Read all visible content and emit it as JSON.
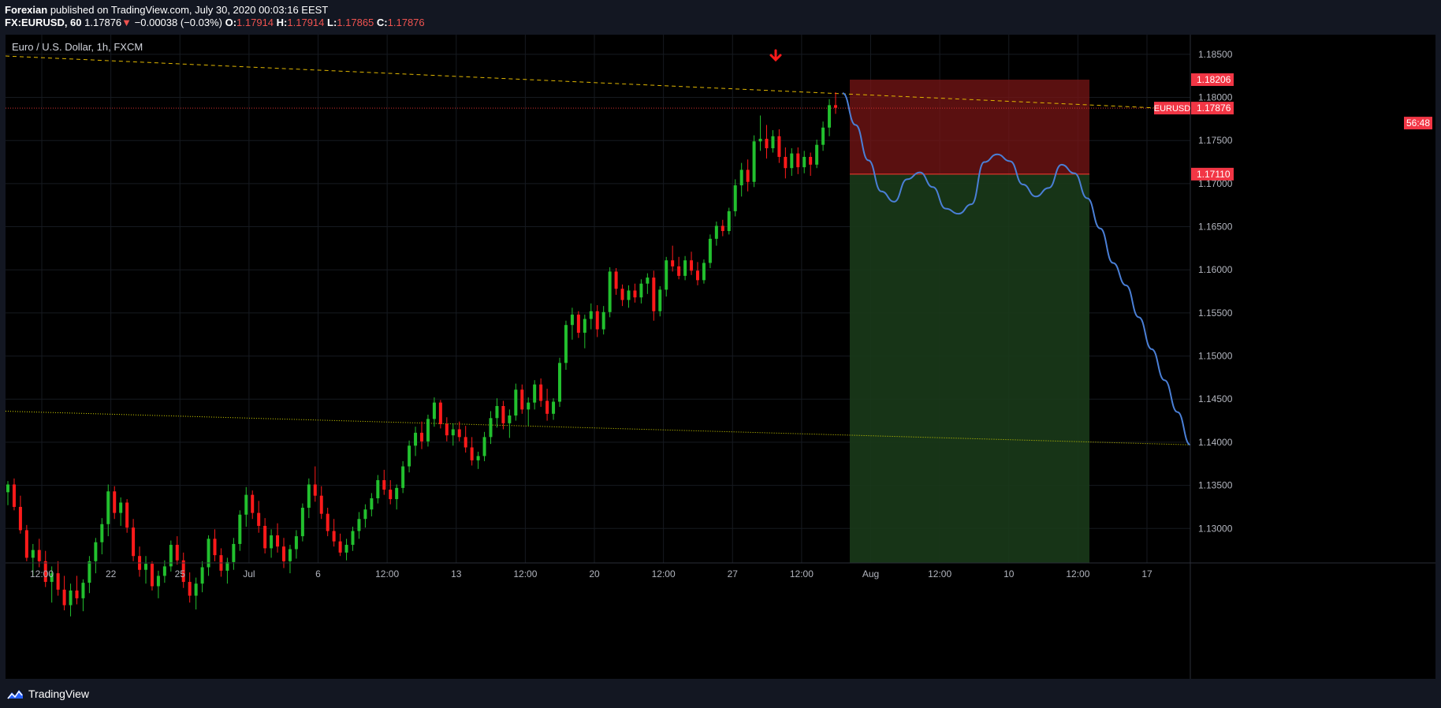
{
  "header": {
    "publisher": "Forexian",
    "published_text": "published on TradingView.com, July 30, 2020 00:03:16 EEST",
    "symbol": "FX:EURUSD, 60",
    "last": "1.17876",
    "change_arrow": "▼",
    "change": "−0.00038 (−0.03%)",
    "o_label": "O:",
    "o_value": "1.17914",
    "h_label": "H:",
    "h_value": "1.17914",
    "l_label": "L:",
    "l_value": "1.17865",
    "c_label": "C:",
    "c_value": "1.17876"
  },
  "chart": {
    "title": "Euro / U.S. Dollar, 1h, FXCM"
  },
  "footer": {
    "brand": "TradingView",
    "logo_icon": "tradingview-logo-icon"
  },
  "colors": {
    "background": "#000000",
    "panel": "#131722",
    "up_candle": "#26a69a",
    "up_candle_chart": "#22c02e",
    "down_candle": "#ff1a1a",
    "forecast_line": "#4a7fd6",
    "trendline_upper": "#e0b600",
    "trendline_lower": "#d6d600",
    "stop_zone": "rgba(120,22,22,0.75)",
    "target_zone": "rgba(26,58,26,0.9)",
    "price_label_bg": "#f23645",
    "arrow": "#ff1a1a"
  },
  "chart_data": {
    "type": "candlestick",
    "title": "Euro / U.S. Dollar, 1h, FXCM",
    "xlabel": "",
    "ylabel": "",
    "ylim": [
      1.126,
      1.187
    ],
    "grid": true,
    "y_ticks": [
      "1.18500",
      "1.18000",
      "1.17500",
      "1.17000",
      "1.16500",
      "1.16000",
      "1.15500",
      "1.15000",
      "1.14500",
      "1.14000",
      "1.13500",
      "1.13000"
    ],
    "x_ticks": [
      "12:00",
      "22",
      "25",
      "Jul",
      "6",
      "12:00",
      "13",
      "12:00",
      "20",
      "12:00",
      "27",
      "12:00",
      "Aug",
      "12:00",
      "10",
      "12:00",
      "17"
    ],
    "price_labels": [
      {
        "text": "1.18206",
        "value": 1.18206
      },
      {
        "text": "1.17876",
        "value": 1.17876,
        "prefix": "EURUSD"
      },
      {
        "text": "56:48",
        "value": 1.17876,
        "kind": "countdown"
      },
      {
        "text": "1.17110",
        "value": 1.1711
      }
    ],
    "trade_setup": {
      "direction": "short",
      "entry": 1.1711,
      "stop": 1.18206
    },
    "trendlines": [
      {
        "name": "",
        "style": "dashed",
        "from": [
          0,
          1.1848
        ],
        "to": [
          1,
          1.1786
        ]
      },
      {
        "name": "",
        "style": "dotted",
        "from": [
          0,
          1.1436
        ],
        "to": [
          1,
          1.1397
        ]
      }
    ],
    "forecast_path": [
      [
        0,
        1.1805
      ],
      [
        1,
        1.1768
      ],
      [
        2,
        1.1727
      ],
      [
        3,
        1.1691
      ],
      [
        4,
        1.1679
      ],
      [
        5,
        1.1705
      ],
      [
        6,
        1.1713
      ],
      [
        7,
        1.1696
      ],
      [
        8,
        1.1671
      ],
      [
        9,
        1.1665
      ],
      [
        10,
        1.1676
      ],
      [
        11,
        1.1725
      ],
      [
        12,
        1.1734
      ],
      [
        13,
        1.1726
      ],
      [
        14,
        1.1699
      ],
      [
        15,
        1.1685
      ],
      [
        16,
        1.1695
      ],
      [
        17,
        1.1722
      ],
      [
        18,
        1.1712
      ],
      [
        19,
        1.1683
      ],
      [
        20,
        1.1648
      ],
      [
        21,
        1.1608
      ],
      [
        22,
        1.1582
      ],
      [
        23,
        1.1545
      ],
      [
        24,
        1.1508
      ],
      [
        25,
        1.1472
      ],
      [
        26,
        1.1435
      ],
      [
        27,
        1.1397
      ]
    ],
    "candles": [
      {
        "o": 1.1342,
        "h": 1.1355,
        "l": 1.1327,
        "c": 1.1351
      },
      {
        "o": 1.1351,
        "h": 1.1358,
        "l": 1.1321,
        "c": 1.1325
      },
      {
        "o": 1.1325,
        "h": 1.1338,
        "l": 1.1294,
        "c": 1.1298
      },
      {
        "o": 1.1298,
        "h": 1.1304,
        "l": 1.1262,
        "c": 1.1266
      },
      {
        "o": 1.1266,
        "h": 1.1282,
        "l": 1.1245,
        "c": 1.1275
      },
      {
        "o": 1.1275,
        "h": 1.1288,
        "l": 1.1255,
        "c": 1.1262
      },
      {
        "o": 1.1262,
        "h": 1.1274,
        "l": 1.1232,
        "c": 1.1238
      },
      {
        "o": 1.1238,
        "h": 1.1256,
        "l": 1.1214,
        "c": 1.1248
      },
      {
        "o": 1.1248,
        "h": 1.1262,
        "l": 1.1222,
        "c": 1.1229
      },
      {
        "o": 1.1229,
        "h": 1.1245,
        "l": 1.1205,
        "c": 1.1211
      },
      {
        "o": 1.1211,
        "h": 1.1236,
        "l": 1.1198,
        "c": 1.1228
      },
      {
        "o": 1.1228,
        "h": 1.1245,
        "l": 1.1212,
        "c": 1.1219
      },
      {
        "o": 1.1219,
        "h": 1.1241,
        "l": 1.1204,
        "c": 1.1237
      },
      {
        "o": 1.1237,
        "h": 1.1268,
        "l": 1.1225,
        "c": 1.1262
      },
      {
        "o": 1.1262,
        "h": 1.1289,
        "l": 1.1248,
        "c": 1.1284
      },
      {
        "o": 1.1284,
        "h": 1.1312,
        "l": 1.127,
        "c": 1.1305
      },
      {
        "o": 1.1305,
        "h": 1.1351,
        "l": 1.1291,
        "c": 1.1343
      },
      {
        "o": 1.1343,
        "h": 1.1349,
        "l": 1.1311,
        "c": 1.1318
      },
      {
        "o": 1.1318,
        "h": 1.1336,
        "l": 1.1303,
        "c": 1.133
      },
      {
        "o": 1.133,
        "h": 1.1334,
        "l": 1.1295,
        "c": 1.1301
      },
      {
        "o": 1.1301,
        "h": 1.1311,
        "l": 1.1262,
        "c": 1.1268
      },
      {
        "o": 1.1268,
        "h": 1.1279,
        "l": 1.1244,
        "c": 1.1252
      },
      {
        "o": 1.1252,
        "h": 1.1268,
        "l": 1.1236,
        "c": 1.1259
      },
      {
        "o": 1.1259,
        "h": 1.1262,
        "l": 1.1228,
        "c": 1.1233
      },
      {
        "o": 1.1233,
        "h": 1.1251,
        "l": 1.1219,
        "c": 1.1245
      },
      {
        "o": 1.1245,
        "h": 1.1263,
        "l": 1.1237,
        "c": 1.1256
      },
      {
        "o": 1.1256,
        "h": 1.1286,
        "l": 1.125,
        "c": 1.1281
      },
      {
        "o": 1.1281,
        "h": 1.1291,
        "l": 1.1258,
        "c": 1.1263
      },
      {
        "o": 1.1263,
        "h": 1.1272,
        "l": 1.1231,
        "c": 1.1238
      },
      {
        "o": 1.1238,
        "h": 1.1249,
        "l": 1.1214,
        "c": 1.1222
      },
      {
        "o": 1.1222,
        "h": 1.1243,
        "l": 1.1206,
        "c": 1.1236
      },
      {
        "o": 1.1236,
        "h": 1.1262,
        "l": 1.1226,
        "c": 1.1255
      },
      {
        "o": 1.1255,
        "h": 1.1292,
        "l": 1.1245,
        "c": 1.1288
      },
      {
        "o": 1.1288,
        "h": 1.1299,
        "l": 1.1262,
        "c": 1.1269
      },
      {
        "o": 1.1269,
        "h": 1.1277,
        "l": 1.1244,
        "c": 1.1251
      },
      {
        "o": 1.1251,
        "h": 1.1266,
        "l": 1.1236,
        "c": 1.1261
      },
      {
        "o": 1.1261,
        "h": 1.1289,
        "l": 1.1252,
        "c": 1.1282
      },
      {
        "o": 1.1282,
        "h": 1.1321,
        "l": 1.1274,
        "c": 1.1316
      },
      {
        "o": 1.1316,
        "h": 1.1348,
        "l": 1.1302,
        "c": 1.1339
      },
      {
        "o": 1.1339,
        "h": 1.1344,
        "l": 1.1311,
        "c": 1.1318
      },
      {
        "o": 1.1318,
        "h": 1.1332,
        "l": 1.1295,
        "c": 1.1303
      },
      {
        "o": 1.1303,
        "h": 1.1312,
        "l": 1.1271,
        "c": 1.1277
      },
      {
        "o": 1.1277,
        "h": 1.1299,
        "l": 1.1266,
        "c": 1.1292
      },
      {
        "o": 1.1292,
        "h": 1.1306,
        "l": 1.1272,
        "c": 1.1279
      },
      {
        "o": 1.1279,
        "h": 1.1289,
        "l": 1.1254,
        "c": 1.1262
      },
      {
        "o": 1.1262,
        "h": 1.1281,
        "l": 1.1248,
        "c": 1.1276
      },
      {
        "o": 1.1276,
        "h": 1.1298,
        "l": 1.1265,
        "c": 1.1291
      },
      {
        "o": 1.1291,
        "h": 1.1329,
        "l": 1.1285,
        "c": 1.1324
      },
      {
        "o": 1.1324,
        "h": 1.1358,
        "l": 1.1312,
        "c": 1.1351
      },
      {
        "o": 1.1351,
        "h": 1.1372,
        "l": 1.1331,
        "c": 1.1338
      },
      {
        "o": 1.1338,
        "h": 1.1349,
        "l": 1.1311,
        "c": 1.1317
      },
      {
        "o": 1.1317,
        "h": 1.1324,
        "l": 1.1291,
        "c": 1.1297
      },
      {
        "o": 1.1297,
        "h": 1.1311,
        "l": 1.1279,
        "c": 1.1285
      },
      {
        "o": 1.1285,
        "h": 1.1294,
        "l": 1.1268,
        "c": 1.1272
      },
      {
        "o": 1.1272,
        "h": 1.1288,
        "l": 1.1263,
        "c": 1.1281
      },
      {
        "o": 1.1281,
        "h": 1.1302,
        "l": 1.1274,
        "c": 1.1297
      },
      {
        "o": 1.1297,
        "h": 1.1319,
        "l": 1.1288,
        "c": 1.1311
      },
      {
        "o": 1.1311,
        "h": 1.1328,
        "l": 1.1301,
        "c": 1.1322
      },
      {
        "o": 1.1322,
        "h": 1.1341,
        "l": 1.1314,
        "c": 1.1335
      },
      {
        "o": 1.1335,
        "h": 1.1362,
        "l": 1.1329,
        "c": 1.1356
      },
      {
        "o": 1.1356,
        "h": 1.1368,
        "l": 1.1339,
        "c": 1.1345
      },
      {
        "o": 1.1345,
        "h": 1.1356,
        "l": 1.1328,
        "c": 1.1334
      },
      {
        "o": 1.1334,
        "h": 1.1351,
        "l": 1.1322,
        "c": 1.1347
      },
      {
        "o": 1.1347,
        "h": 1.1378,
        "l": 1.1341,
        "c": 1.1372
      },
      {
        "o": 1.1372,
        "h": 1.1402,
        "l": 1.1365,
        "c": 1.1396
      },
      {
        "o": 1.1396,
        "h": 1.1418,
        "l": 1.1384,
        "c": 1.1411
      },
      {
        "o": 1.1411,
        "h": 1.1424,
        "l": 1.1392,
        "c": 1.1401
      },
      {
        "o": 1.1401,
        "h": 1.1432,
        "l": 1.1395,
        "c": 1.1427
      },
      {
        "o": 1.1427,
        "h": 1.1452,
        "l": 1.1418,
        "c": 1.1446
      },
      {
        "o": 1.1446,
        "h": 1.1449,
        "l": 1.1416,
        "c": 1.1421
      },
      {
        "o": 1.1421,
        "h": 1.1429,
        "l": 1.1401,
        "c": 1.1408
      },
      {
        "o": 1.1408,
        "h": 1.1422,
        "l": 1.1396,
        "c": 1.1415
      },
      {
        "o": 1.1415,
        "h": 1.1424,
        "l": 1.1401,
        "c": 1.1406
      },
      {
        "o": 1.1406,
        "h": 1.1419,
        "l": 1.1388,
        "c": 1.1394
      },
      {
        "o": 1.1394,
        "h": 1.1406,
        "l": 1.1373,
        "c": 1.1379
      },
      {
        "o": 1.1379,
        "h": 1.1389,
        "l": 1.1369,
        "c": 1.1384
      },
      {
        "o": 1.1384,
        "h": 1.1412,
        "l": 1.1378,
        "c": 1.1406
      },
      {
        "o": 1.1406,
        "h": 1.1436,
        "l": 1.1398,
        "c": 1.1428
      },
      {
        "o": 1.1428,
        "h": 1.1451,
        "l": 1.1417,
        "c": 1.1442
      },
      {
        "o": 1.1442,
        "h": 1.1448,
        "l": 1.1415,
        "c": 1.1422
      },
      {
        "o": 1.1422,
        "h": 1.1438,
        "l": 1.1405,
        "c": 1.1431
      },
      {
        "o": 1.1431,
        "h": 1.1468,
        "l": 1.1425,
        "c": 1.1461
      },
      {
        "o": 1.1461,
        "h": 1.1467,
        "l": 1.1433,
        "c": 1.1438
      },
      {
        "o": 1.1438,
        "h": 1.1452,
        "l": 1.1419,
        "c": 1.1446
      },
      {
        "o": 1.1446,
        "h": 1.1472,
        "l": 1.1438,
        "c": 1.1467
      },
      {
        "o": 1.1467,
        "h": 1.1474,
        "l": 1.1441,
        "c": 1.1448
      },
      {
        "o": 1.1448,
        "h": 1.1462,
        "l": 1.1425,
        "c": 1.1433
      },
      {
        "o": 1.1433,
        "h": 1.1451,
        "l": 1.1426,
        "c": 1.1447
      },
      {
        "o": 1.1447,
        "h": 1.1498,
        "l": 1.1441,
        "c": 1.1492
      },
      {
        "o": 1.1492,
        "h": 1.1541,
        "l": 1.1484,
        "c": 1.1536
      },
      {
        "o": 1.1536,
        "h": 1.1556,
        "l": 1.1519,
        "c": 1.1548
      },
      {
        "o": 1.1548,
        "h": 1.1552,
        "l": 1.1521,
        "c": 1.1527
      },
      {
        "o": 1.1527,
        "h": 1.1548,
        "l": 1.1509,
        "c": 1.1543
      },
      {
        "o": 1.1543,
        "h": 1.1561,
        "l": 1.1531,
        "c": 1.1552
      },
      {
        "o": 1.1552,
        "h": 1.1559,
        "l": 1.1522,
        "c": 1.1531
      },
      {
        "o": 1.1531,
        "h": 1.1558,
        "l": 1.1525,
        "c": 1.1551
      },
      {
        "o": 1.1551,
        "h": 1.1603,
        "l": 1.1545,
        "c": 1.1598
      },
      {
        "o": 1.1598,
        "h": 1.1602,
        "l": 1.1571,
        "c": 1.1578
      },
      {
        "o": 1.1578,
        "h": 1.1583,
        "l": 1.1558,
        "c": 1.1565
      },
      {
        "o": 1.1565,
        "h": 1.1582,
        "l": 1.1556,
        "c": 1.1576
      },
      {
        "o": 1.1576,
        "h": 1.1584,
        "l": 1.1562,
        "c": 1.1568
      },
      {
        "o": 1.1568,
        "h": 1.1589,
        "l": 1.1561,
        "c": 1.1584
      },
      {
        "o": 1.1584,
        "h": 1.1596,
        "l": 1.1572,
        "c": 1.1591
      },
      {
        "o": 1.1591,
        "h": 1.1599,
        "l": 1.1541,
        "c": 1.1552
      },
      {
        "o": 1.1552,
        "h": 1.1581,
        "l": 1.1546,
        "c": 1.1577
      },
      {
        "o": 1.1577,
        "h": 1.1615,
        "l": 1.1569,
        "c": 1.1611
      },
      {
        "o": 1.1611,
        "h": 1.1628,
        "l": 1.1598,
        "c": 1.1604
      },
      {
        "o": 1.1604,
        "h": 1.1615,
        "l": 1.1589,
        "c": 1.1593
      },
      {
        "o": 1.1593,
        "h": 1.1616,
        "l": 1.1588,
        "c": 1.1611
      },
      {
        "o": 1.1611,
        "h": 1.1621,
        "l": 1.1594,
        "c": 1.1599
      },
      {
        "o": 1.1599,
        "h": 1.1609,
        "l": 1.1582,
        "c": 1.1588
      },
      {
        "o": 1.1588,
        "h": 1.1612,
        "l": 1.1584,
        "c": 1.1608
      },
      {
        "o": 1.1608,
        "h": 1.1641,
        "l": 1.1602,
        "c": 1.1636
      },
      {
        "o": 1.1636,
        "h": 1.1656,
        "l": 1.1628,
        "c": 1.1651
      },
      {
        "o": 1.1651,
        "h": 1.1658,
        "l": 1.1639,
        "c": 1.1645
      },
      {
        "o": 1.1645,
        "h": 1.1672,
        "l": 1.1641,
        "c": 1.1668
      },
      {
        "o": 1.1668,
        "h": 1.1705,
        "l": 1.1662,
        "c": 1.1698
      },
      {
        "o": 1.1698,
        "h": 1.1724,
        "l": 1.1685,
        "c": 1.1716
      },
      {
        "o": 1.1716,
        "h": 1.1728,
        "l": 1.1691,
        "c": 1.1702
      },
      {
        "o": 1.1702,
        "h": 1.1756,
        "l": 1.1696,
        "c": 1.1749
      },
      {
        "o": 1.1749,
        "h": 1.1779,
        "l": 1.1738,
        "c": 1.1752
      },
      {
        "o": 1.1752,
        "h": 1.1768,
        "l": 1.1729,
        "c": 1.1741
      },
      {
        "o": 1.1741,
        "h": 1.1762,
        "l": 1.1736,
        "c": 1.1755
      },
      {
        "o": 1.1755,
        "h": 1.1763,
        "l": 1.1724,
        "c": 1.1731
      },
      {
        "o": 1.1731,
        "h": 1.1742,
        "l": 1.1706,
        "c": 1.1718
      },
      {
        "o": 1.1718,
        "h": 1.1741,
        "l": 1.1709,
        "c": 1.1735
      },
      {
        "o": 1.1735,
        "h": 1.1742,
        "l": 1.1711,
        "c": 1.1719
      },
      {
        "o": 1.1719,
        "h": 1.1738,
        "l": 1.1712,
        "c": 1.1731
      },
      {
        "o": 1.1731,
        "h": 1.1736,
        "l": 1.1709,
        "c": 1.1722
      },
      {
        "o": 1.1722,
        "h": 1.1751,
        "l": 1.1718,
        "c": 1.1745
      },
      {
        "o": 1.1745,
        "h": 1.1772,
        "l": 1.1738,
        "c": 1.1765
      },
      {
        "o": 1.1765,
        "h": 1.1798,
        "l": 1.1755,
        "c": 1.1791
      },
      {
        "o": 1.1791,
        "h": 1.1806,
        "l": 1.1781,
        "c": 1.1788
      }
    ]
  }
}
